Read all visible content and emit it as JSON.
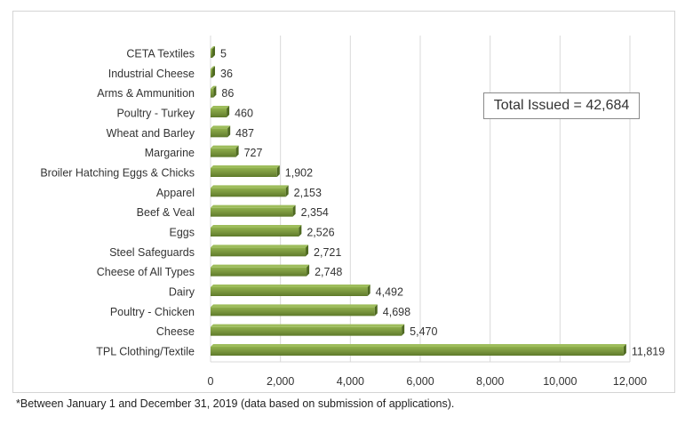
{
  "chart_data": {
    "type": "bar",
    "orientation": "horizontal",
    "categories": [
      "CETA Textiles",
      "Industrial Cheese",
      "Arms & Ammunition",
      "Poultry - Turkey",
      "Wheat and Barley",
      "Margarine",
      "Broiler Hatching Eggs & Chicks",
      "Apparel",
      "Beef & Veal",
      "Eggs",
      "Steel Safeguards",
      "Cheese of All Types",
      "Dairy",
      "Poultry - Chicken",
      "Cheese",
      "TPL Clothing/Textile"
    ],
    "values": [
      5,
      36,
      86,
      460,
      487,
      727,
      1902,
      2153,
      2354,
      2526,
      2721,
      2748,
      4492,
      4698,
      5470,
      11819
    ],
    "value_labels": [
      "5",
      "36",
      "86",
      "460",
      "487",
      "727",
      "1,902",
      "2,153",
      "2,354",
      "2,526",
      "2,721",
      "2,748",
      "4,492",
      "4,698",
      "5,470",
      "11,819"
    ],
    "x_ticks": [
      0,
      2000,
      4000,
      6000,
      8000,
      10000,
      12000
    ],
    "x_tick_labels": [
      "0",
      "2,000",
      "4,000",
      "6,000",
      "8,000",
      "10,000",
      "12,000"
    ],
    "xlim": [
      0,
      12000
    ],
    "grid": true,
    "bar_color": "#77933c",
    "annotation": "Total Issued = 42,684",
    "footnote": "*Between January 1 and December 31, 2019 (data based on submission of applications)."
  }
}
